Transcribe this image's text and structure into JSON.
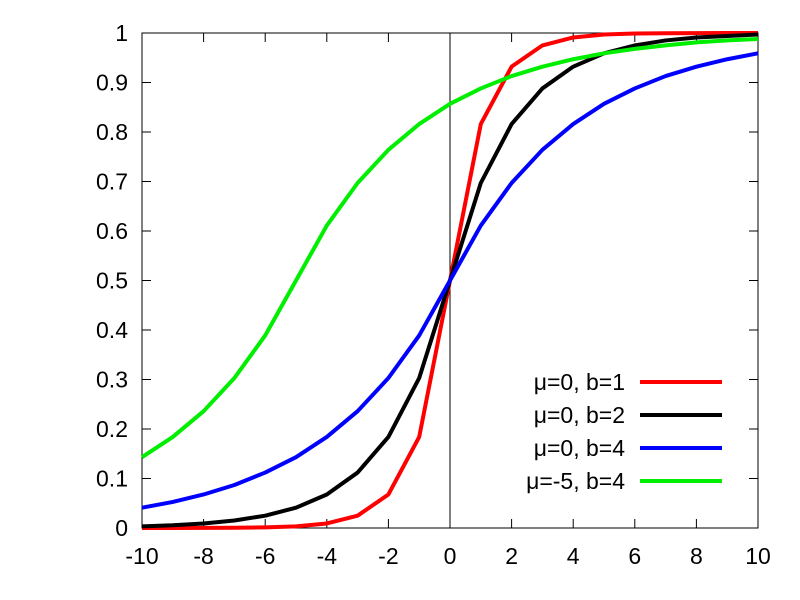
{
  "chart_data": {
    "type": "line",
    "title": "",
    "xlabel": "",
    "ylabel": "",
    "xlim": [
      -10,
      10
    ],
    "ylim": [
      0,
      1
    ],
    "x_ticks": [
      -10,
      -8,
      -6,
      -4,
      -2,
      0,
      2,
      4,
      6,
      8,
      10
    ],
    "x_tick_labels": [
      "-10",
      "-8",
      "-6",
      "-4",
      "-2",
      "0",
      "2",
      "4",
      "6",
      "8",
      "10"
    ],
    "y_ticks": [
      0,
      0.1,
      0.2,
      0.3,
      0.4,
      0.5,
      0.6,
      0.7,
      0.8,
      0.9,
      1
    ],
    "y_tick_labels": [
      "0",
      "0.1",
      "0.2",
      "0.3",
      "0.4",
      "0.5",
      "0.6",
      "0.7",
      "0.8",
      "0.9",
      "1"
    ],
    "grid": false,
    "zero_line_x": true,
    "legend_position": "bottom-right",
    "x": [
      -10,
      -9,
      -8,
      -7,
      -6,
      -5,
      -4,
      -3,
      -2,
      -1,
      0,
      1,
      2,
      3,
      4,
      5,
      6,
      7,
      8,
      9,
      10
    ],
    "series": [
      {
        "name": "μ=0, b=1",
        "color": "#ff0000",
        "values": [
          2.27e-05,
          6.17e-05,
          0.000168,
          0.000456,
          0.00124,
          0.00337,
          0.00916,
          0.0249,
          0.0677,
          0.184,
          0.5,
          0.816,
          0.932,
          0.975,
          0.991,
          0.997,
          0.999,
          0.9995,
          0.9998,
          0.9999,
          1.0
        ]
      },
      {
        "name": "μ=0, b=2",
        "color": "#000000",
        "values": [
          0.00337,
          0.00555,
          0.00916,
          0.0151,
          0.0249,
          0.041,
          0.0677,
          0.112,
          0.184,
          0.303,
          0.5,
          0.697,
          0.816,
          0.888,
          0.932,
          0.959,
          0.975,
          0.985,
          0.991,
          0.994,
          0.997
        ]
      },
      {
        "name": "μ=0, b=4",
        "color": "#0000ff",
        "values": [
          0.041,
          0.0527,
          0.0677,
          0.0869,
          0.112,
          0.143,
          0.184,
          0.236,
          0.303,
          0.389,
          0.5,
          0.611,
          0.697,
          0.764,
          0.816,
          0.857,
          0.888,
          0.913,
          0.932,
          0.947,
          0.959
        ]
      },
      {
        "name": "μ=-5, b=4",
        "color": "#00ee00",
        "values": [
          0.143,
          0.184,
          0.236,
          0.303,
          0.389,
          0.5,
          0.611,
          0.697,
          0.764,
          0.816,
          0.857,
          0.888,
          0.913,
          0.932,
          0.947,
          0.959,
          0.968,
          0.975,
          0.981,
          0.985,
          0.988
        ]
      }
    ]
  }
}
